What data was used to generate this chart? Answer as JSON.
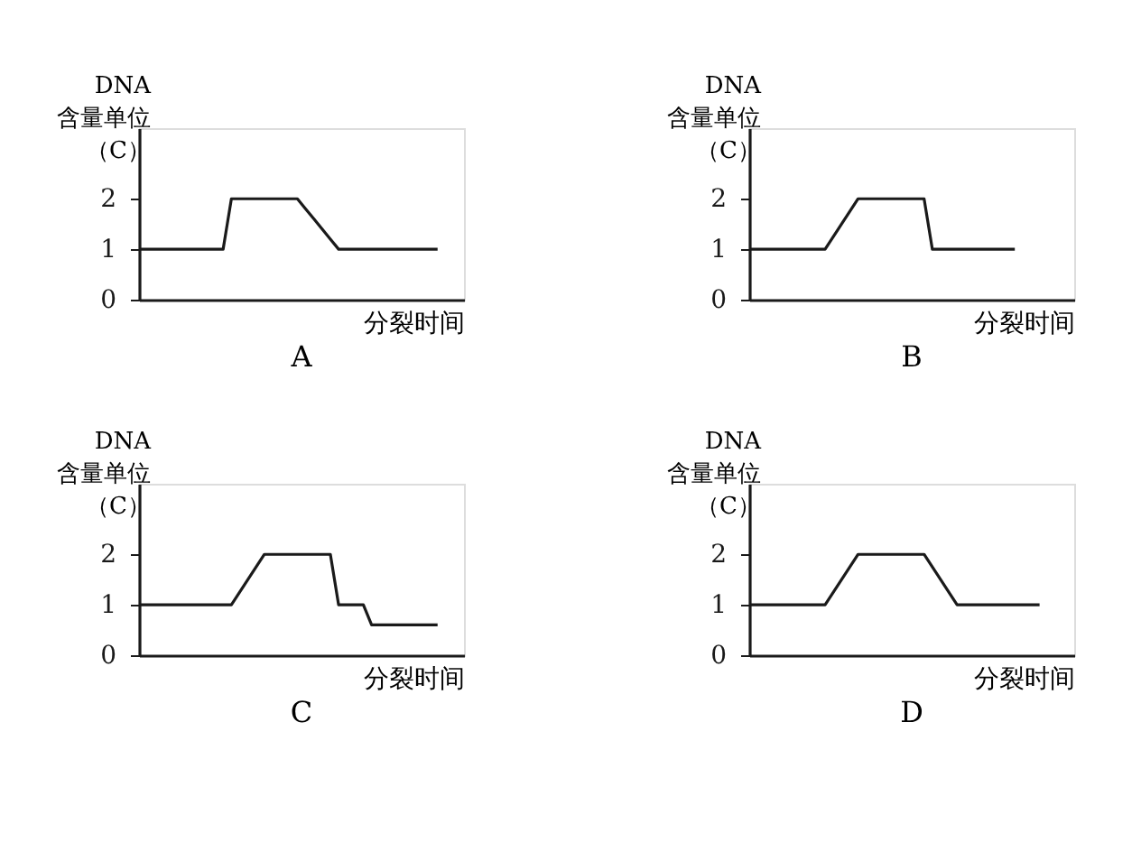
{
  "chart_data": [
    {
      "type": "line",
      "title": "A",
      "ylabel": "DNA\n含量单位（C）",
      "xlabel": "分裂时间",
      "color": "#1a1a1a",
      "categories": [
        null,
        null,
        null,
        null,
        null,
        null,
        null,
        null,
        null,
        null,
        null,
        null,
        null,
        null,
        null,
        null,
        null,
        null,
        null,
        null,
        null,
        null,
        null,
        null,
        null,
        null,
        null,
        null,
        null,
        null,
        null,
        null,
        null,
        null,
        null,
        null,
        null,
        null,
        null,
        null
      ],
      "values": [
        1,
        1,
        1,
        1,
        1,
        1,
        1,
        1,
        1,
        1,
        1,
        2,
        2,
        2,
        2,
        2,
        2,
        2,
        2,
        2,
        1.8,
        1.6,
        1.4,
        1.2,
        1,
        1,
        1,
        1,
        1,
        1,
        1,
        1,
        1,
        1,
        1,
        1,
        1,
        null,
        null,
        null
      ],
      "ylim": [
        0,
        3.4
      ],
      "yticks": [
        0,
        1,
        2
      ],
      "tick_labels": "y"
    },
    {
      "type": "line",
      "title": "B",
      "ylabel": "DNA\n含量单位（C）",
      "xlabel": "分裂时间",
      "color": "#1a1a1a",
      "categories": [
        null,
        null,
        null,
        null,
        null,
        null,
        null,
        null,
        null,
        null,
        null,
        null,
        null,
        null,
        null,
        null,
        null,
        null,
        null,
        null,
        null,
        null,
        null,
        null,
        null,
        null,
        null,
        null,
        null,
        null,
        null,
        null,
        null,
        null,
        null,
        null,
        null,
        null,
        null,
        null
      ],
      "values": [
        1,
        1,
        1,
        1,
        1,
        1,
        1,
        1,
        1,
        1,
        1.25,
        1.5,
        1.75,
        2,
        2,
        2,
        2,
        2,
        2,
        2,
        2,
        2,
        1,
        1,
        1,
        1,
        1,
        1,
        1,
        1,
        1,
        1,
        1,
        null,
        null,
        null,
        null,
        null,
        null,
        null
      ],
      "ylim": [
        0,
        3.4
      ],
      "yticks": [
        0,
        1,
        2
      ],
      "tick_labels": "y"
    },
    {
      "type": "line",
      "title": "C",
      "ylabel": "DNA\n含量单位（C）",
      "xlabel": "分裂时间",
      "color": "#1a1a1a",
      "categories": [
        null,
        null,
        null,
        null,
        null,
        null,
        null,
        null,
        null,
        null,
        null,
        null,
        null,
        null,
        null,
        null,
        null,
        null,
        null,
        null,
        null,
        null,
        null,
        null,
        null,
        null,
        null,
        null,
        null,
        null,
        null,
        null,
        null,
        null,
        null,
        null,
        null,
        null,
        null,
        null
      ],
      "values": [
        1,
        1,
        1,
        1,
        1,
        1,
        1,
        1,
        1,
        1,
        1,
        1,
        1.25,
        1.5,
        1.75,
        2,
        2,
        2,
        2,
        2,
        2,
        2,
        2,
        2,
        1,
        1,
        1,
        1,
        0.6,
        0.6,
        0.6,
        0.6,
        0.6,
        0.6,
        0.6,
        0.6,
        0.6,
        null,
        null,
        null
      ],
      "ylim": [
        0,
        3.4
      ],
      "yticks": [
        0,
        1,
        2
      ],
      "tick_labels": "y"
    },
    {
      "type": "line",
      "title": "D",
      "ylabel": "DNA\n含量单位（C）",
      "xlabel": "分裂时间",
      "color": "#1a1a1a",
      "categories": [
        null,
        null,
        null,
        null,
        null,
        null,
        null,
        null,
        null,
        null,
        null,
        null,
        null,
        null,
        null,
        null,
        null,
        null,
        null,
        null,
        null,
        null,
        null,
        null,
        null,
        null,
        null,
        null,
        null,
        null,
        null,
        null,
        null,
        null,
        null,
        null,
        null,
        null,
        null,
        null
      ],
      "values": [
        1,
        1,
        1,
        1,
        1,
        1,
        1,
        1,
        1,
        1,
        1.25,
        1.5,
        1.75,
        2,
        2,
        2,
        2,
        2,
        2,
        2,
        2,
        2,
        1.75,
        1.5,
        1.25,
        1,
        1,
        1,
        1,
        1,
        1,
        1,
        1,
        1,
        1,
        1,
        null,
        null,
        null,
        null
      ],
      "ylim": [
        0,
        3.4
      ],
      "yticks": [
        0,
        1,
        2
      ],
      "tick_labels": "y"
    }
  ]
}
